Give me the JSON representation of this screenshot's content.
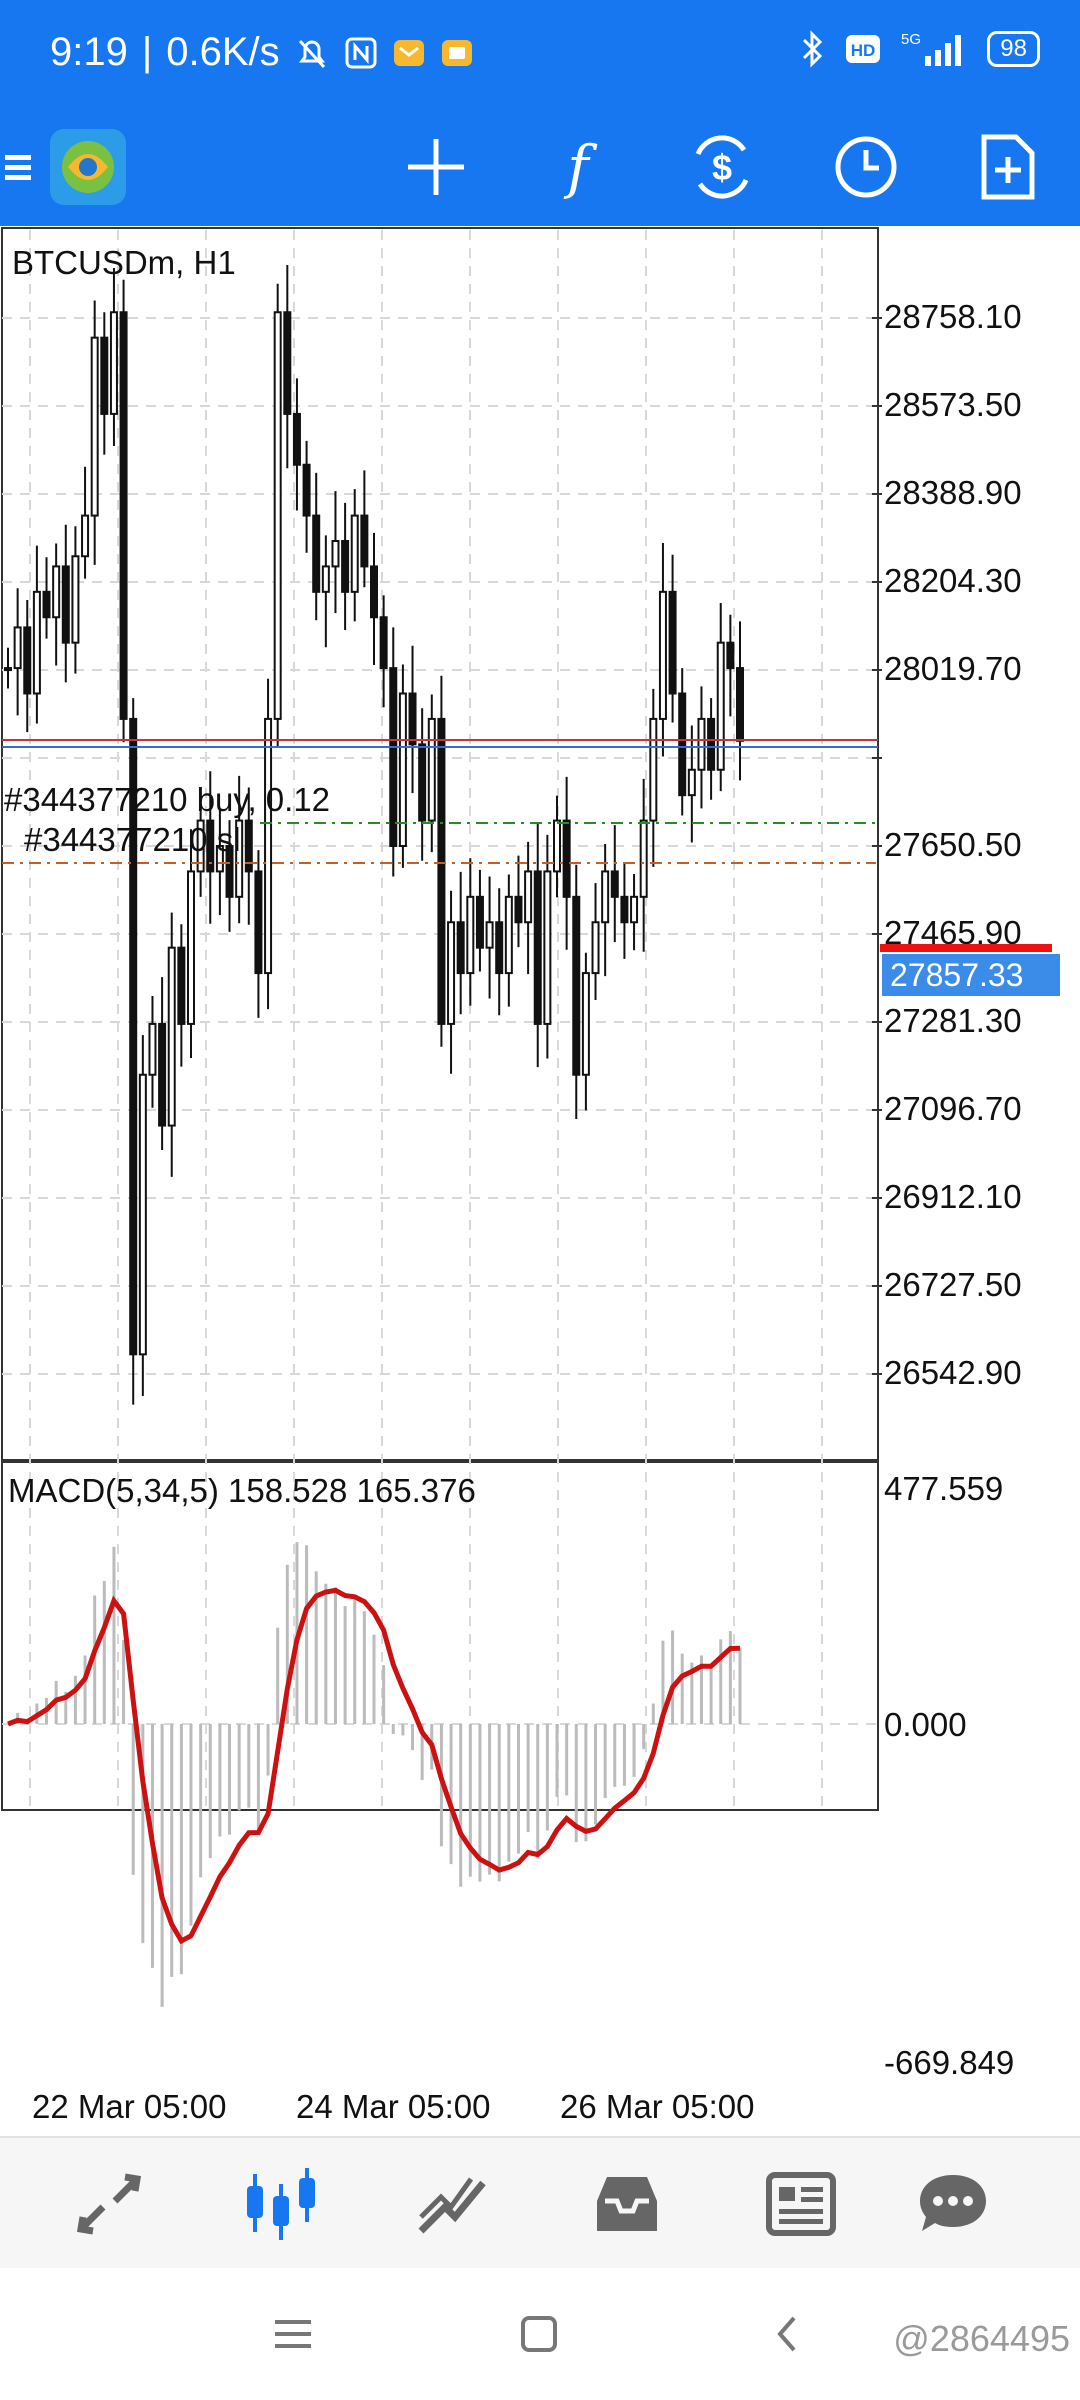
{
  "status_bar": {
    "time": "9:19",
    "speed": "0.6K/s",
    "network": "5G",
    "battery": "98",
    "hd_label": "HD"
  },
  "toolbar": {
    "icons": [
      "menu-icon",
      "metatrader-logo",
      "crosshair-icon",
      "indicators-icon",
      "trade-icon",
      "timeframe-clock-icon",
      "new-order-icon"
    ],
    "indicator_glyph": "f"
  },
  "chart": {
    "symbol_label": "BTCUSDm, H1",
    "price_axis": [
      "28758.10",
      "28573.50",
      "28388.90",
      "28204.30",
      "28019.70",
      "27650.50",
      "27465.90",
      "27281.30",
      "27096.70",
      "26912.10",
      "26727.50",
      "26542.90"
    ],
    "current_price": "27857.33",
    "order_label": "#344377210 buy, 0.12",
    "sl_label": "#344377210 sl",
    "time_axis": [
      "22 Mar 05:00",
      "24 Mar 05:00",
      "26 Mar 05:00"
    ]
  },
  "macd": {
    "label": "MACD(5,34,5) 158.528 165.376",
    "axis_top": "477.559",
    "axis_zero": "0.000",
    "axis_bottom": "-669.849"
  },
  "colors": {
    "accent": "#1677f0",
    "signal_line": "#cc1111",
    "price_box": "#3a8ce8",
    "order_line": "#2a8a2a",
    "sl_line": "#c0602a"
  },
  "bottom_tabs": [
    "quotes-tab",
    "chart-tab",
    "trade-tab",
    "history-tab",
    "news-tab",
    "messages-tab"
  ],
  "watermark": "@2864495",
  "chart_data": {
    "type": "candlestick",
    "symbol": "BTCUSDm",
    "timeframe": "H1",
    "ylim": [
      26450,
      28850
    ],
    "close_series": [
      28000,
      28080,
      27950,
      28150,
      28100,
      28200,
      28050,
      28220,
      28300,
      28650,
      28500,
      28700,
      27900,
      26650,
      27200,
      27300,
      27100,
      27450,
      27300,
      27600,
      27700,
      27600,
      27650,
      27550,
      27700,
      27600,
      27400,
      27900,
      28700,
      28500,
      28400,
      28300,
      28150,
      28200,
      28250,
      28150,
      28300,
      28200,
      28100,
      28000,
      27650,
      27950,
      27850,
      27700,
      27900,
      27300,
      27500,
      27400,
      27550,
      27450,
      27500,
      27400,
      27550,
      27500,
      27600,
      27300,
      27600,
      27700,
      27550,
      27200,
      27400,
      27500,
      27600,
      27550,
      27500,
      27550,
      27700,
      27900,
      28150,
      27950,
      27750,
      27800,
      27900,
      27800,
      28050,
      28000,
      27857
    ]
  }
}
